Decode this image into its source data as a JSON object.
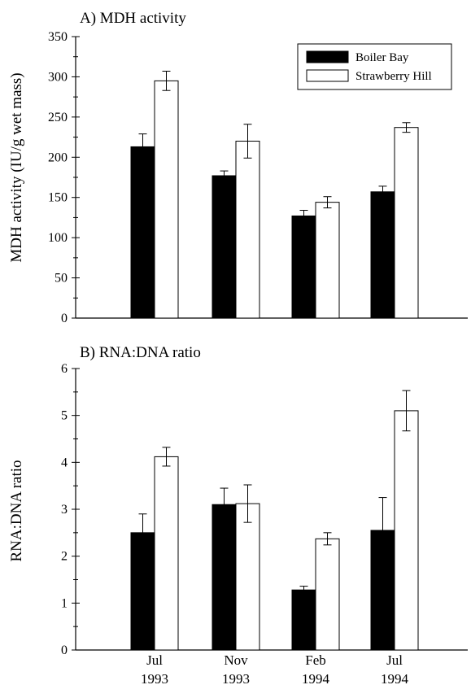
{
  "categories": [
    {
      "line1": "Jul",
      "line2": "1993"
    },
    {
      "line1": "Nov",
      "line2": "1993"
    },
    {
      "line1": "Feb",
      "line2": "1994"
    },
    {
      "line1": "Jul",
      "line2": "1994"
    }
  ],
  "legend": {
    "items": [
      {
        "name": "Boiler Bay",
        "color": "#000000"
      },
      {
        "name": "Strawberry Hill",
        "color": "#ffffff"
      }
    ]
  },
  "chart_data": [
    {
      "type": "bar",
      "title": "A) MDH activity",
      "ylabel": "MDH activity (IU/g wet mass)",
      "xlabel": "",
      "categories": [
        "Jul 1993",
        "Nov 1993",
        "Feb 1994",
        "Jul 1994"
      ],
      "ylim": [
        0,
        350
      ],
      "yticks": [
        0,
        50,
        100,
        150,
        200,
        250,
        300,
        350
      ],
      "legend_position": "top-right",
      "series": [
        {
          "name": "Boiler Bay",
          "values": [
            213,
            177,
            127,
            157
          ],
          "errors": [
            16,
            6,
            7,
            7
          ]
        },
        {
          "name": "Strawberry Hill",
          "values": [
            295,
            220,
            144,
            237
          ],
          "errors": [
            12,
            21,
            7,
            6
          ]
        }
      ]
    },
    {
      "type": "bar",
      "title": "B) RNA:DNA ratio",
      "ylabel": "RNA:DNA ratio",
      "xlabel": "",
      "categories": [
        "Jul 1993",
        "Nov 1993",
        "Feb 1994",
        "Jul 1994"
      ],
      "ylim": [
        0,
        6
      ],
      "yticks": [
        0,
        1,
        2,
        3,
        4,
        5,
        6
      ],
      "series": [
        {
          "name": "Boiler Bay",
          "values": [
            2.5,
            3.1,
            1.28,
            2.55
          ],
          "errors": [
            0.4,
            0.35,
            0.08,
            0.7
          ]
        },
        {
          "name": "Strawberry Hill",
          "values": [
            4.12,
            3.12,
            2.37,
            5.1
          ],
          "errors": [
            0.2,
            0.4,
            0.13,
            0.43
          ]
        }
      ]
    }
  ]
}
